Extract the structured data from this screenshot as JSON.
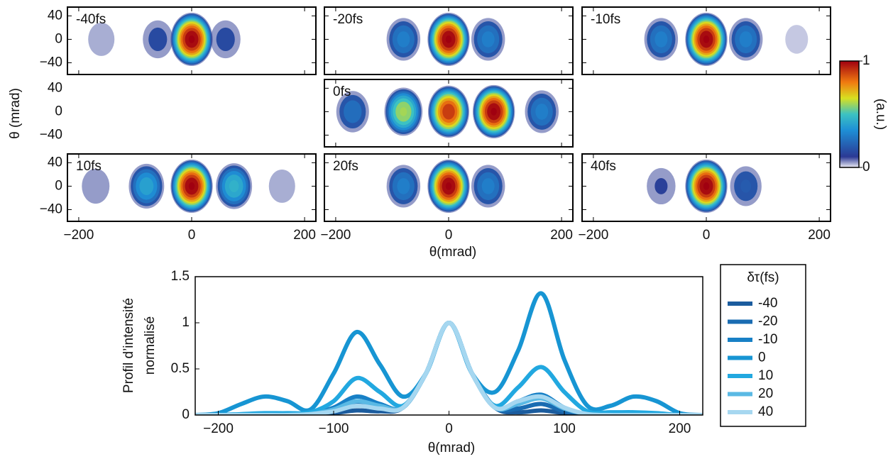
{
  "chart_data": [
    {
      "type": "heatmap",
      "ylabel": "θ (mrad)",
      "xlabel": "θ(mrad)",
      "xlim": [
        -220,
        220
      ],
      "ylim": [
        -60,
        55
      ],
      "xticks": [
        {
          "value": -200,
          "label": "−200"
        },
        0,
        200
      ],
      "yticks": [
        40,
        0,
        {
          "value": -40,
          "label": "−40"
        }
      ],
      "colorbar": {
        "ticks": [
          0,
          1
        ],
        "label": "(a.u.)"
      },
      "panels": [
        {
          "label": "-40fs",
          "x": [
            -160,
            -60,
            0,
            60
          ],
          "values": [
            0.08,
            0.15,
            1,
            0.15
          ]
        },
        {
          "label": "-20fs",
          "x": [
            -80,
            0,
            70
          ],
          "values": [
            0.3,
            1,
            0.3
          ]
        },
        {
          "label": "-10fs",
          "x": [
            -80,
            0,
            70,
            160
          ],
          "values": [
            0.3,
            1,
            0.3,
            0.05
          ]
        },
        {
          "label": "0fs",
          "x": [
            -170,
            -80,
            0,
            80,
            165
          ],
          "values": [
            0.25,
            0.6,
            0.9,
            1,
            0.3
          ]
        },
        {
          "label": "10fs",
          "x": [
            -170,
            -80,
            0,
            75,
            160
          ],
          "values": [
            0.1,
            0.4,
            1,
            0.45,
            0.08
          ]
        },
        {
          "label": "20fs",
          "x": [
            -80,
            0,
            70
          ],
          "values": [
            0.3,
            1,
            0.3
          ]
        },
        {
          "label": "40fs",
          "x": [
            -80,
            0,
            70
          ],
          "values": [
            0.12,
            1,
            0.2
          ]
        }
      ]
    },
    {
      "type": "line",
      "ylabel": [
        "Profil d’intensité",
        "normalisé"
      ],
      "xlabel": "θ(mrad)",
      "legend_title": "δτ(fs)",
      "xlim": [
        -220,
        220
      ],
      "ylim": [
        0,
        1.5
      ],
      "xticks": [
        {
          "value": -200,
          "label": "−200"
        },
        {
          "value": -100,
          "label": "−100"
        },
        0,
        100,
        200
      ],
      "yticks": [
        0,
        0.5,
        1,
        1.5
      ],
      "x": [
        -220,
        -200,
        -180,
        -160,
        -140,
        -120,
        -100,
        -80,
        -60,
        -40,
        -20,
        0,
        20,
        40,
        60,
        80,
        100,
        120,
        140,
        160,
        180,
        200,
        220
      ],
      "series": [
        {
          "name": "-40",
          "color": "#1b5c9e",
          "values": [
            0,
            0,
            0,
            0,
            0,
            0,
            0.02,
            0.05,
            0.04,
            0.08,
            0.45,
            1,
            0.45,
            0.08,
            0.03,
            0.05,
            0.02,
            0,
            0,
            0,
            0,
            0,
            0
          ]
        },
        {
          "name": "-20",
          "color": "#1a6cb2",
          "values": [
            0,
            0,
            0,
            0,
            0,
            0,
            0.04,
            0.12,
            0.08,
            0.08,
            0.45,
            1,
            0.45,
            0.08,
            0.07,
            0.12,
            0.04,
            0,
            0,
            0,
            0,
            0,
            0
          ]
        },
        {
          "name": "-10",
          "color": "#1880c6",
          "values": [
            0,
            0,
            0,
            0,
            0,
            0.01,
            0.08,
            0.2,
            0.12,
            0.08,
            0.45,
            1,
            0.45,
            0.08,
            0.15,
            0.22,
            0.08,
            0.01,
            0,
            0,
            0,
            0,
            0
          ]
        },
        {
          "name": "0",
          "color": "#1795d3",
          "values": [
            0,
            0.02,
            0.12,
            0.2,
            0.15,
            0.06,
            0.45,
            0.9,
            0.55,
            0.2,
            0.45,
            1,
            0.45,
            0.25,
            0.7,
            1.32,
            0.6,
            0.1,
            0.1,
            0.2,
            0.15,
            0.02,
            0
          ]
        },
        {
          "name": "10",
          "color": "#22a8e0",
          "values": [
            0,
            0,
            0.01,
            0.02,
            0.02,
            0.03,
            0.15,
            0.4,
            0.25,
            0.1,
            0.45,
            1,
            0.45,
            0.1,
            0.3,
            0.52,
            0.25,
            0.04,
            0.03,
            0.03,
            0.02,
            0,
            0
          ]
        },
        {
          "name": "20",
          "color": "#5ab9e4",
          "values": [
            0,
            0,
            0,
            0,
            0,
            0.01,
            0.06,
            0.15,
            0.1,
            0.08,
            0.45,
            1,
            0.45,
            0.08,
            0.12,
            0.18,
            0.07,
            0.01,
            0,
            0,
            0,
            0,
            0
          ]
        },
        {
          "name": "40",
          "color": "#a6d7f0",
          "values": [
            0,
            0,
            0,
            0,
            0,
            0.01,
            0.04,
            0.1,
            0.07,
            0.08,
            0.45,
            1,
            0.45,
            0.08,
            0.15,
            0.2,
            0.08,
            0.01,
            0,
            0,
            0,
            0,
            0
          ]
        }
      ]
    }
  ]
}
